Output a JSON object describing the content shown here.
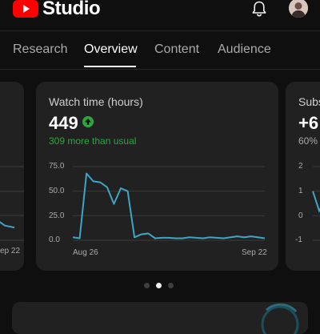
{
  "app": {
    "name": "Studio",
    "brand_color": "#ff0000"
  },
  "header": {
    "notifications_icon": "bell-icon",
    "avatar": "account-avatar"
  },
  "tabs": [
    {
      "label": "Research",
      "active": false
    },
    {
      "label": "Overview",
      "active": true
    },
    {
      "label": "Content",
      "active": false
    },
    {
      "label": "Audience",
      "active": false
    }
  ],
  "cards": {
    "left": {
      "x_label_end": "ep 22"
    },
    "main": {
      "title": "Watch time (hours)",
      "value": "449",
      "trend_icon": "arrow-up-icon",
      "comparison": "309 more than usual",
      "comparison_color": "#2ba640",
      "line_color": "#3ea6c4"
    },
    "right": {
      "title": "Subs",
      "value": "+6",
      "comparison": "60% l"
    }
  },
  "chart_data": [
    {
      "type": "line",
      "title": "Watch time (hours)",
      "x_labels": [
        "Aug 26",
        "Sep 22"
      ],
      "yticks": [
        "0.0",
        "25.0",
        "50.0",
        "75.0"
      ],
      "ylim": [
        0,
        75
      ],
      "x": [
        "Aug 25",
        "Aug 26",
        "Aug 27",
        "Aug 28",
        "Aug 29",
        "Aug 30",
        "Aug 31",
        "Sep 1",
        "Sep 2",
        "Sep 3",
        "Sep 4",
        "Sep 5",
        "Sep 6",
        "Sep 7",
        "Sep 8",
        "Sep 9",
        "Sep 10",
        "Sep 11",
        "Sep 12",
        "Sep 13",
        "Sep 14",
        "Sep 15",
        "Sep 16",
        "Sep 17",
        "Sep 18",
        "Sep 19",
        "Sep 20",
        "Sep 21",
        "Sep 22"
      ],
      "series": [
        {
          "values": [
            3,
            2,
            68,
            60,
            59,
            54,
            37,
            53,
            50,
            3,
            6,
            7,
            2,
            2.5,
            2.5,
            2,
            2,
            3,
            2.5,
            2,
            3,
            2.5,
            2,
            3,
            4,
            3,
            4,
            3,
            2
          ]
        }
      ],
      "grid": true,
      "color": "#3ea6c4"
    },
    {
      "type": "line",
      "x_labels": [
        "ep 22"
      ],
      "series": [
        {
          "values": [
            20,
            22,
            15,
            13
          ]
        }
      ],
      "grid": true,
      "color": "#3ea6c4"
    },
    {
      "type": "line",
      "yticks": [
        "2",
        "1",
        "0",
        "-1"
      ],
      "ylim": [
        -1,
        2
      ],
      "series": [
        {
          "values": [
            1,
            0.2,
            0.8
          ]
        }
      ],
      "grid": true,
      "color": "#3ea6c4"
    }
  ],
  "pagination": {
    "pages": 3,
    "active_index": 1
  }
}
